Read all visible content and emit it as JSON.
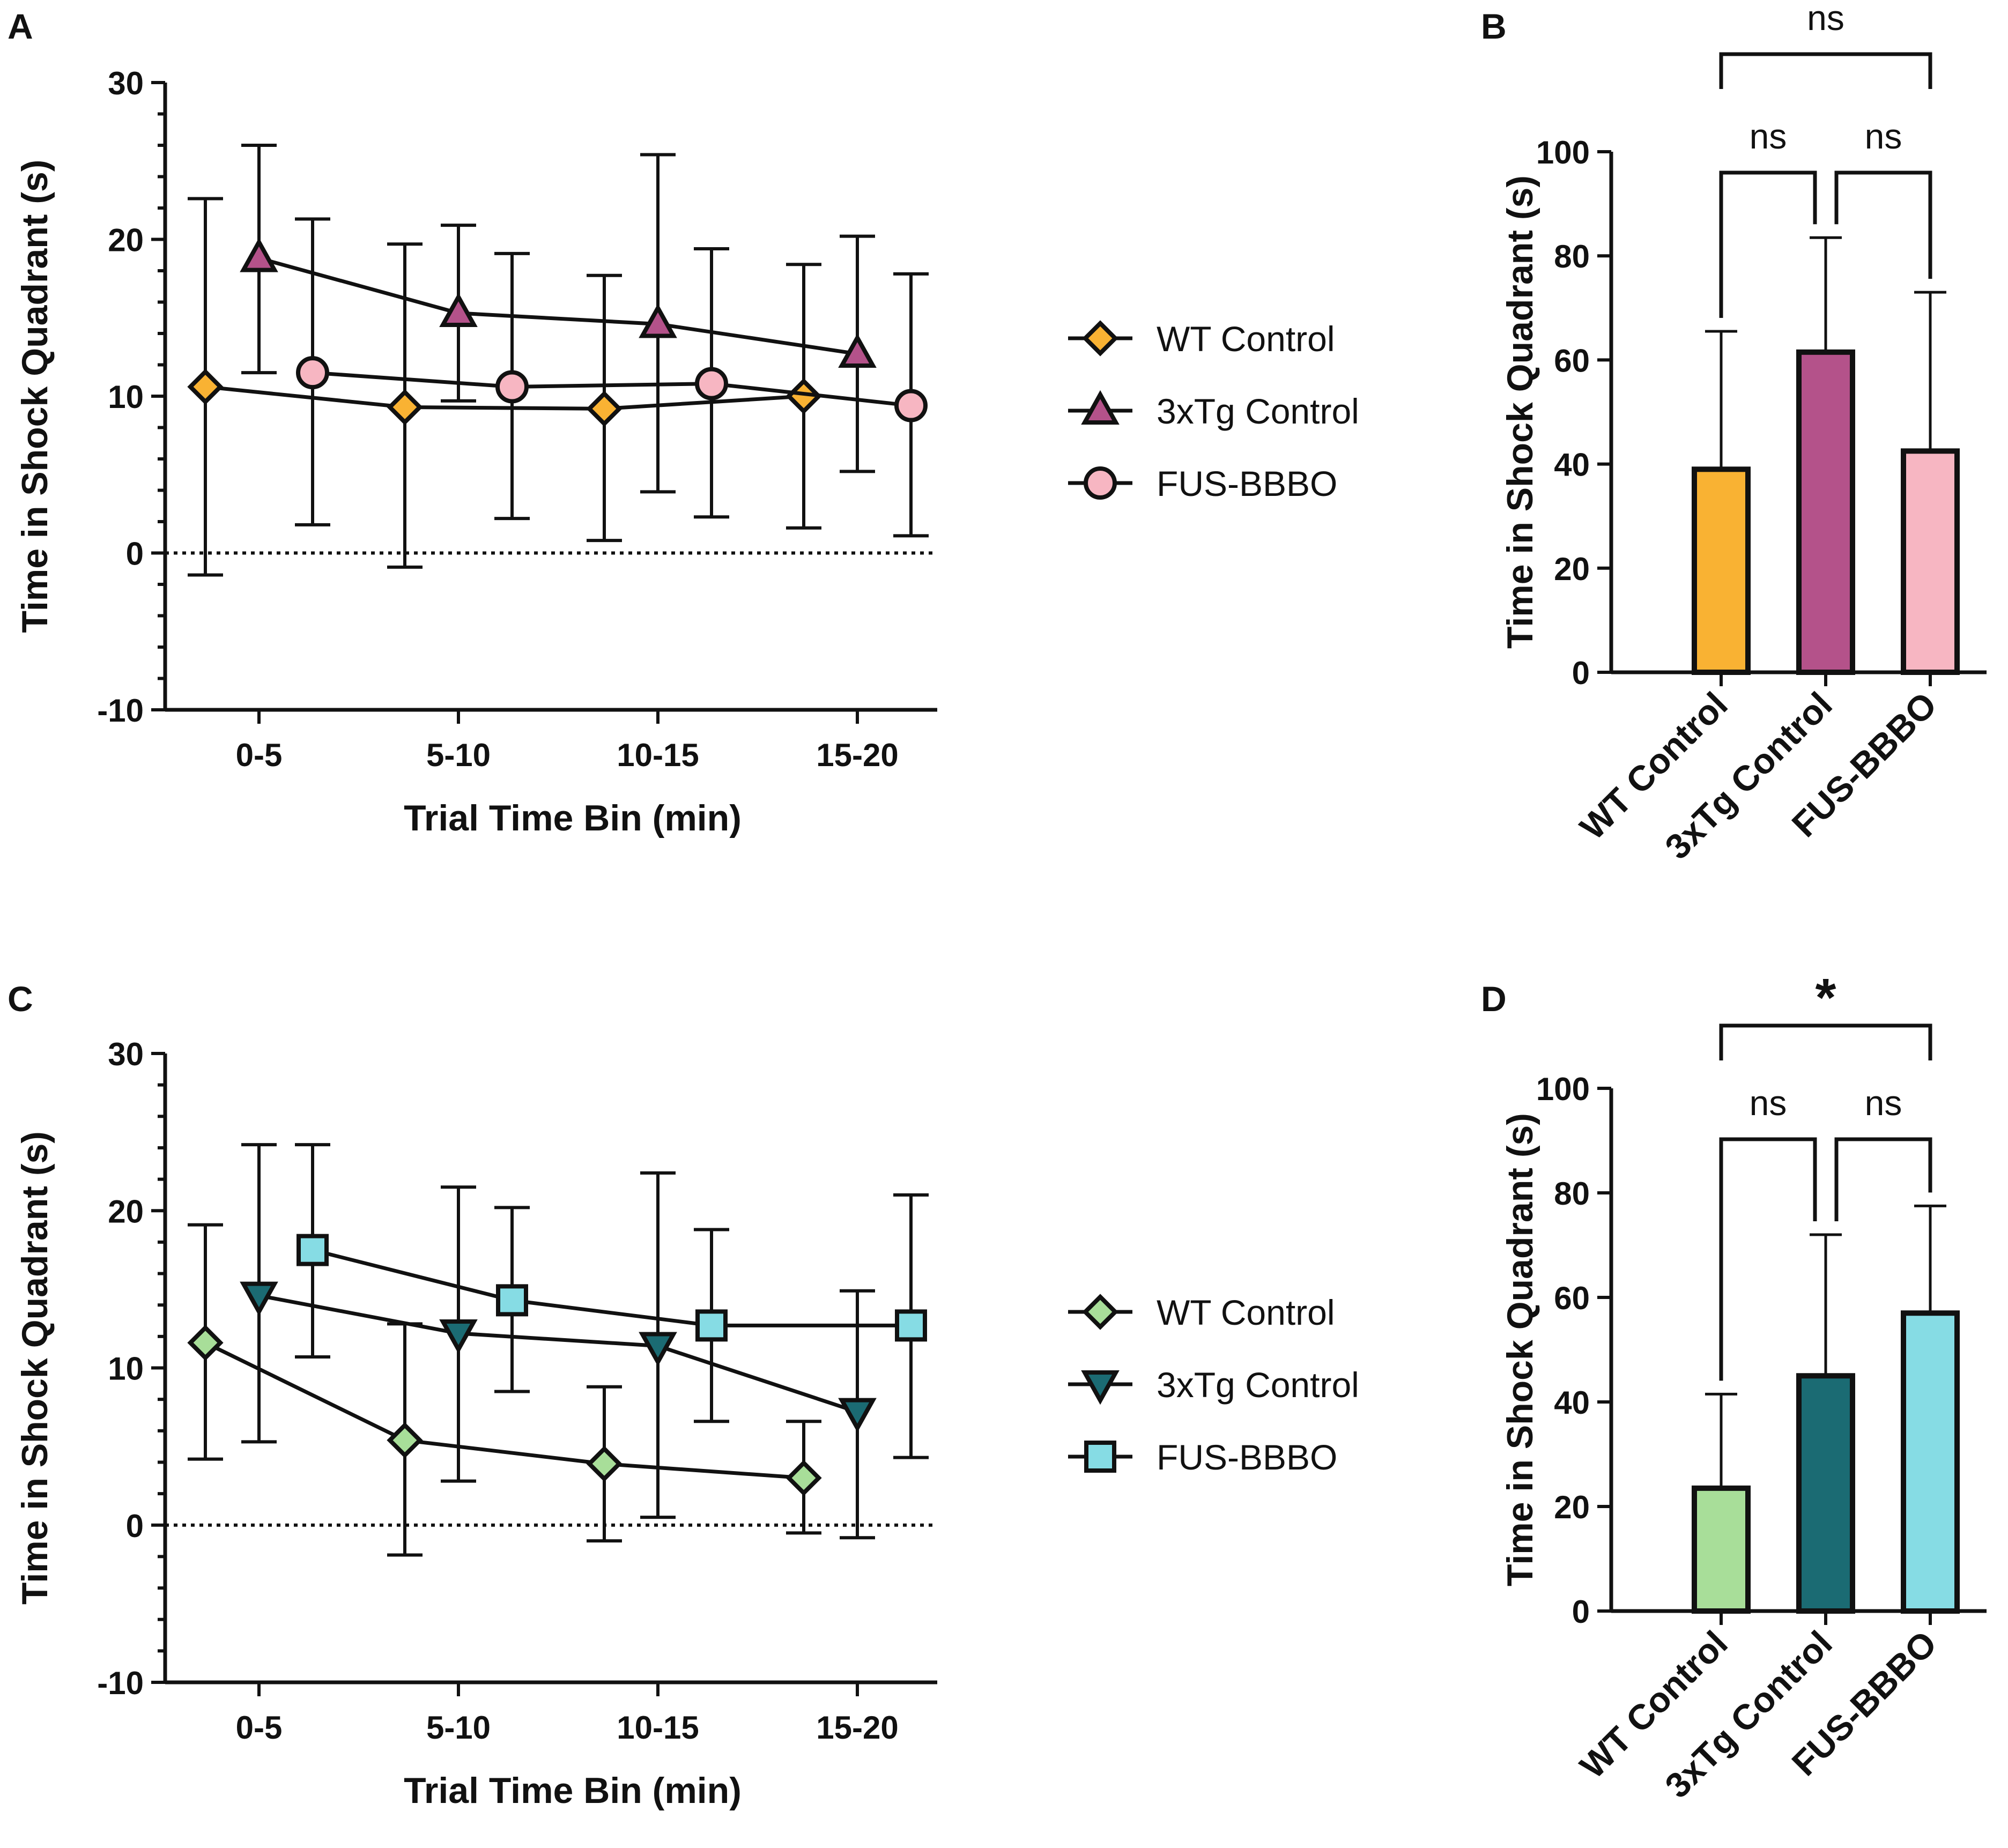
{
  "figure": {
    "panel_labels": [
      "A",
      "B",
      "C",
      "D"
    ]
  },
  "chart_data": [
    {
      "panel": "A",
      "type": "line",
      "xlabel": "Trial Time Bin (min)",
      "ylabel": "Time in Shock Quadrant (s)",
      "categories": [
        "0-5",
        "5-10",
        "10-15",
        "15-20"
      ],
      "ylim": [
        -10,
        30
      ],
      "yticks": [
        30,
        20,
        10,
        0,
        -10
      ],
      "reference_line": 0,
      "legend": {
        "placement": "right"
      },
      "series": [
        {
          "name": "WT Control",
          "marker": "diamond",
          "color": "#F9B233",
          "offset": -1,
          "values": [
            10.6,
            9.3,
            9.2,
            10.0
          ],
          "err_low": [
            -1.4,
            -0.9,
            0.8,
            1.6
          ],
          "err_high": [
            22.6,
            19.7,
            17.7,
            18.4
          ]
        },
        {
          "name": "3xTg Control",
          "marker": "triangle-up",
          "color": "#B4528A",
          "offset": 0,
          "values": [
            18.8,
            15.3,
            14.6,
            12.7
          ],
          "err_low": [
            11.5,
            9.7,
            3.9,
            5.2
          ],
          "err_high": [
            26.0,
            20.9,
            25.4,
            20.2
          ]
        },
        {
          "name": "FUS-BBBO",
          "marker": "circle",
          "color": "#F7B6C2",
          "offset": 1,
          "values": [
            11.5,
            10.6,
            10.8,
            9.4
          ],
          "err_low": [
            1.8,
            2.2,
            2.3,
            1.1
          ],
          "err_high": [
            21.3,
            19.1,
            19.4,
            17.8
          ]
        }
      ]
    },
    {
      "panel": "B",
      "type": "bar",
      "ylabel": "Time in Shock Quadrant (s)",
      "categories": [
        "WT Control",
        "3xTg Control",
        "FUS-BBBO"
      ],
      "values": [
        39,
        61.5,
        42.5
      ],
      "err_high": [
        65.5,
        83.5,
        73
      ],
      "colors": [
        "#F9B233",
        "#B4528A",
        "#F7B6C2"
      ],
      "ylim": [
        0,
        100
      ],
      "yticks": [
        0,
        20,
        40,
        60,
        80,
        100
      ],
      "significance": [
        {
          "from": 0,
          "to": 1,
          "label": "ns"
        },
        {
          "from": 1,
          "to": 2,
          "label": "ns"
        },
        {
          "from": 0,
          "to": 2,
          "label": "ns"
        }
      ]
    },
    {
      "panel": "C",
      "type": "line",
      "xlabel": "Trial Time Bin (min)",
      "ylabel": "Time in Shock Quadrant (s)",
      "categories": [
        "0-5",
        "5-10",
        "10-15",
        "15-20"
      ],
      "ylim": [
        -10,
        30
      ],
      "yticks": [
        30,
        20,
        10,
        0,
        -10
      ],
      "reference_line": 0,
      "legend": {
        "placement": "right"
      },
      "series": [
        {
          "name": "WT Control",
          "marker": "diamond",
          "color": "#A8DE99",
          "offset": -1,
          "values": [
            11.6,
            5.4,
            3.9,
            3.0
          ],
          "err_low": [
            4.2,
            -1.9,
            -1.0,
            -0.5
          ],
          "err_high": [
            19.1,
            12.8,
            8.8,
            6.6
          ]
        },
        {
          "name": "3xTg Control",
          "marker": "triangle-down",
          "color": "#1B6B73",
          "offset": 0,
          "values": [
            14.6,
            12.2,
            11.4,
            7.2
          ],
          "err_low": [
            5.3,
            2.8,
            0.5,
            -0.8
          ],
          "err_high": [
            24.2,
            21.5,
            22.4,
            14.9
          ]
        },
        {
          "name": "FUS-BBBO",
          "marker": "square",
          "color": "#86DCE4",
          "offset": 1,
          "values": [
            17.5,
            14.3,
            12.7,
            12.7
          ],
          "err_low": [
            10.7,
            8.5,
            6.6,
            4.3
          ],
          "err_high": [
            24.2,
            20.2,
            18.8,
            21.0
          ]
        }
      ]
    },
    {
      "panel": "D",
      "type": "bar",
      "ylabel": "Time in Shock Quadrant (s)",
      "categories": [
        "WT Control",
        "3xTg Control",
        "FUS-BBBO"
      ],
      "values": [
        23.5,
        45,
        57
      ],
      "err_high": [
        41.5,
        72,
        77.5
      ],
      "colors": [
        "#A8DE99",
        "#1B6B73",
        "#86DCE4"
      ],
      "ylim": [
        0,
        100
      ],
      "yticks": [
        0,
        20,
        40,
        60,
        80,
        100
      ],
      "significance": [
        {
          "from": 0,
          "to": 1,
          "label": "ns"
        },
        {
          "from": 1,
          "to": 2,
          "label": "ns"
        },
        {
          "from": 0,
          "to": 2,
          "label": "*"
        }
      ]
    }
  ]
}
